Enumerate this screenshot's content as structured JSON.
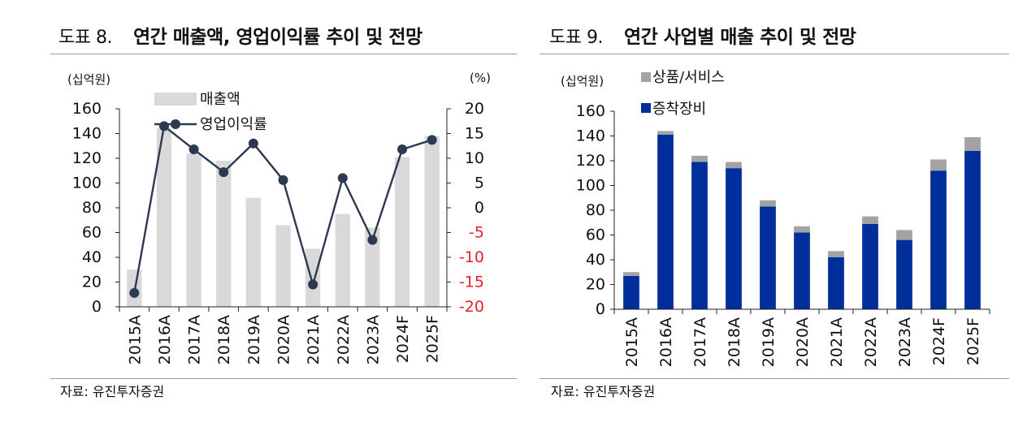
{
  "colors": {
    "revenue_bar": "#d9d9d9",
    "margin_line": "#2b3a4f",
    "axis_red": "#e8202a",
    "products": "#a3a3a3",
    "equipment": "#002f9c"
  },
  "left": {
    "fig_num": "도표 8.",
    "title": "연간 매출액, 영업이익률 추이 및 전망",
    "source": "자료: 유진투자증권",
    "chart_data": {
      "type": "bar+line",
      "categories": [
        "2015A",
        "2016A",
        "2017A",
        "2018A",
        "2019A",
        "2020A",
        "2021A",
        "2022A",
        "2023A",
        "2024F",
        "2025F"
      ],
      "y_unit": "(십억원)",
      "y2_unit": "(%)",
      "ylim": [
        0,
        160
      ],
      "y_ticks": [
        "0",
        "20",
        "40",
        "60",
        "80",
        "100",
        "120",
        "140",
        "160"
      ],
      "y2lim": [
        -20,
        20
      ],
      "y2_ticks": [
        "-20",
        "-15",
        "-10",
        "-5",
        "0",
        "5",
        "10",
        "15",
        "20"
      ],
      "legend": [
        "매출액",
        "영업이익률"
      ],
      "series": [
        {
          "name": "매출액",
          "type": "bar",
          "axis": "left",
          "values": [
            30,
            144,
            124,
            118,
            88,
            66,
            47,
            75,
            64,
            121,
            138
          ]
        },
        {
          "name": "영업이익률",
          "type": "line",
          "axis": "right",
          "values": [
            -17.2,
            16.5,
            11.8,
            7.2,
            13.0,
            5.6,
            -15.5,
            6.0,
            -6.5,
            11.8,
            13.7
          ]
        }
      ]
    }
  },
  "right": {
    "fig_num": "도표 9.",
    "title": "연간 사업별 매출 추이 및 전망",
    "source": "자료: 유진투자증권",
    "chart_data": {
      "type": "stacked-bar",
      "categories": [
        "2015A",
        "2016A",
        "2017A",
        "2018A",
        "2019A",
        "2020A",
        "2021A",
        "2022A",
        "2023A",
        "2024F",
        "2025F"
      ],
      "y_unit": "(십억원)",
      "ylim": [
        0,
        160
      ],
      "y_ticks": [
        "0",
        "20",
        "40",
        "60",
        "80",
        "100",
        "120",
        "140",
        "160"
      ],
      "legend": [
        "상품/서비스",
        "증착장비"
      ],
      "series": [
        {
          "name": "증착장비",
          "values": [
            27,
            141,
            119,
            114,
            83,
            62,
            42,
            69,
            56,
            112,
            128
          ]
        },
        {
          "name": "상품/서비스",
          "values": [
            3,
            3,
            5,
            5,
            5,
            5,
            5,
            6,
            8,
            9,
            11
          ]
        }
      ]
    }
  }
}
